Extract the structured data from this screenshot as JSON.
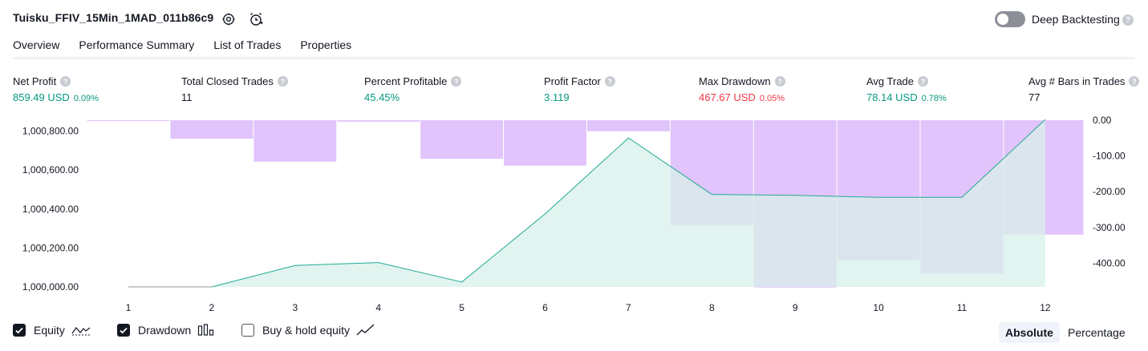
{
  "header": {
    "strategy_name": "Tuisku_FFIV_15Min_1MAD_011b86c9",
    "settings_icon": "gear-icon",
    "alert_icon": "add-alarm-icon",
    "deep_backtesting_label": "Deep Backtesting",
    "deep_backtesting_enabled": false,
    "help_glyph": "?"
  },
  "tabs": [
    {
      "label": "Overview",
      "active": true
    },
    {
      "label": "Performance Summary",
      "active": false
    },
    {
      "label": "List of Trades",
      "active": false
    },
    {
      "label": "Properties",
      "active": false
    }
  ],
  "stats": {
    "net_profit": {
      "label": "Net Profit",
      "value": "859.49 USD",
      "pct": "0.09%"
    },
    "total_closed_trades": {
      "label": "Total Closed Trades",
      "value": "11"
    },
    "percent_profitable": {
      "label": "Percent Profitable",
      "value": "45.45%"
    },
    "profit_factor": {
      "label": "Profit Factor",
      "value": "3.119"
    },
    "max_drawdown": {
      "label": "Max Drawdown",
      "value": "467.67 USD",
      "pct": "0.05%"
    },
    "avg_trade": {
      "label": "Avg Trade",
      "value": "78.14 USD",
      "pct": "0.78%"
    },
    "avg_bars": {
      "label": "Avg # Bars in Trades",
      "value": "77"
    }
  },
  "colors": {
    "equity_line": "#22ab94",
    "equity_fill": "#d7f0ea",
    "drawdown_bar": "#e1c4fb",
    "positive": "#089981",
    "negative": "#f23645"
  },
  "chart_data": {
    "type": "bar",
    "x_ticks": [
      "1",
      "2",
      "3",
      "4",
      "5",
      "6",
      "7",
      "8",
      "9",
      "10",
      "11",
      "12"
    ],
    "left_axis_ticks": [
      "1,000,800.00",
      "1,000,600.00",
      "1,000,400.00",
      "1,000,200.00",
      "1,000,000.00"
    ],
    "right_axis_ticks": [
      "0.00",
      "-100.00",
      "-200.00",
      "-300.00",
      "-400.00"
    ],
    "left_ylim": [
      1000000,
      1000850
    ],
    "right_ylim": [
      -470,
      0
    ],
    "series": [
      {
        "name": "Equity",
        "type": "area",
        "x": [
          1,
          2,
          3,
          4,
          5,
          6,
          7,
          8,
          9,
          10,
          11,
          12
        ],
        "values": [
          1000000,
          1000000,
          1000110,
          1000125,
          1000025,
          1000375,
          1000765,
          1000475,
          1000470,
          1000460,
          1000460,
          1000859.49
        ]
      },
      {
        "name": "Drawdown",
        "type": "bar",
        "x": [
          1,
          2,
          3,
          4,
          5,
          6,
          7,
          8,
          9,
          10,
          11,
          12
        ],
        "values": [
          -2,
          -52,
          -116,
          -4,
          -108,
          -127,
          -31,
          -294,
          -468,
          -392,
          -429,
          -320
        ]
      }
    ]
  },
  "legend": {
    "equity": {
      "label": "Equity",
      "checked": true,
      "icon": "equity-line-icon"
    },
    "drawdown": {
      "label": "Drawdown",
      "checked": true,
      "icon": "bars-icon"
    },
    "buy_hold": {
      "label": "Buy & hold equity",
      "checked": false,
      "icon": "trend-line-icon"
    }
  },
  "view_toggle": {
    "absolute": "Absolute",
    "percentage": "Percentage",
    "selected": "Absolute"
  }
}
